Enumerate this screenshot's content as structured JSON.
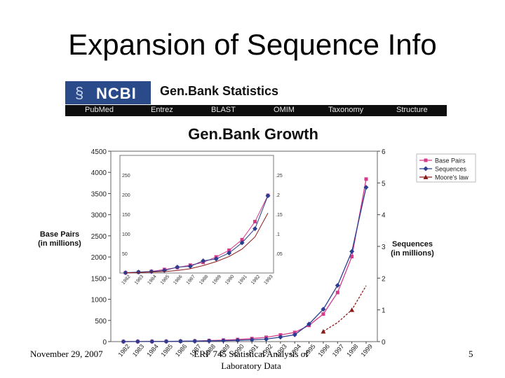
{
  "slide": {
    "title": "Expansion of Sequence Info",
    "footer_date": "November 29, 2007",
    "footer_center": "ERF 745 Statistical Analysis of Laboratory Data",
    "page_number": "5"
  },
  "ncbi": {
    "logo_text": "NCBI",
    "title": "Gen.Bank Statistics",
    "nav": [
      "PubMed",
      "Entrez",
      "BLAST",
      "OMIM",
      "Taxonomy",
      "Structure"
    ]
  },
  "chart_data": [
    {
      "type": "line",
      "title": "Gen.Bank Growth",
      "ylabel": "Base Pairs (in millions)",
      "y2label": "Sequences (in millions)",
      "x": [
        "1982",
        "1983",
        "1984",
        "1985",
        "1986",
        "1987",
        "1988",
        "1989",
        "1990",
        "1991",
        "1992",
        "1993",
        "1994",
        "1995",
        "1996",
        "1997",
        "1998",
        "1999"
      ],
      "ylim": [
        0,
        4500
      ],
      "yticks": [
        "0",
        "500",
        "1000",
        "1500",
        "2000",
        "2500",
        "3000",
        "3500",
        "4000",
        "4500"
      ],
      "y2lim": [
        0,
        6
      ],
      "y2ticks": [
        "0",
        "1",
        "2",
        "3",
        "4",
        "5",
        "6"
      ],
      "series": [
        {
          "name": "Base Pairs",
          "color": "#d63a8a",
          "marker": "square",
          "axis": "left",
          "values": [
            1,
            2,
            4,
            5,
            9,
            15,
            24,
            35,
            49,
            71,
            101,
            157,
            217,
            384,
            651,
            1160,
            2009,
            3841
          ]
        },
        {
          "name": "Sequences",
          "color": "#2a3d8f",
          "marker": "diamond",
          "axis": "right",
          "values": [
            0.001,
            0.002,
            0.004,
            0.006,
            0.01,
            0.015,
            0.021,
            0.029,
            0.04,
            0.055,
            0.078,
            0.14,
            0.215,
            0.555,
            1.02,
            1.77,
            2.84,
            4.86
          ]
        },
        {
          "name": "Moore's law",
          "color": "#8a1a1a",
          "marker": "triangle",
          "axis": "left",
          "values": [
            null,
            null,
            null,
            null,
            null,
            null,
            null,
            null,
            null,
            null,
            null,
            null,
            null,
            null,
            240,
            450,
            750,
            1320
          ]
        }
      ],
      "legend_position": "top-right"
    },
    {
      "type": "line",
      "x": [
        "1982",
        "1983",
        "1984",
        "1985",
        "1986",
        "1987",
        "1988",
        "1989",
        "1990",
        "1991",
        "1992",
        "1993"
      ],
      "ylim": [
        0,
        300
      ],
      "yticks": [
        "50",
        "100",
        "150",
        "200",
        "250"
      ],
      "y2lim": [
        0,
        0.3
      ],
      "y2ticks": [
        ".05",
        ".1",
        ".15",
        ".2",
        ".25"
      ],
      "series": [
        {
          "name": "Base Pairs",
          "color": "#d63a8a",
          "marker": "square",
          "values": [
            0.7,
            2,
            4,
            9,
            14,
            20,
            27,
            41,
            58,
            85,
            131,
            198
          ]
        },
        {
          "name": "Sequences",
          "color": "#2a3d8f",
          "marker": "diamond",
          "values": [
            0.6,
            2.5,
            3.5,
            6.5,
            15,
            17,
            31,
            36,
            51,
            77,
            113,
            197
          ]
        },
        {
          "name": "Moore's law",
          "color": "#8a1a1a",
          "marker": "none",
          "values": [
            0.5,
            1.4,
            2.5,
            3.5,
            6.5,
            11,
            19,
            29,
            42,
            61,
            92,
            153
          ]
        }
      ]
    }
  ]
}
